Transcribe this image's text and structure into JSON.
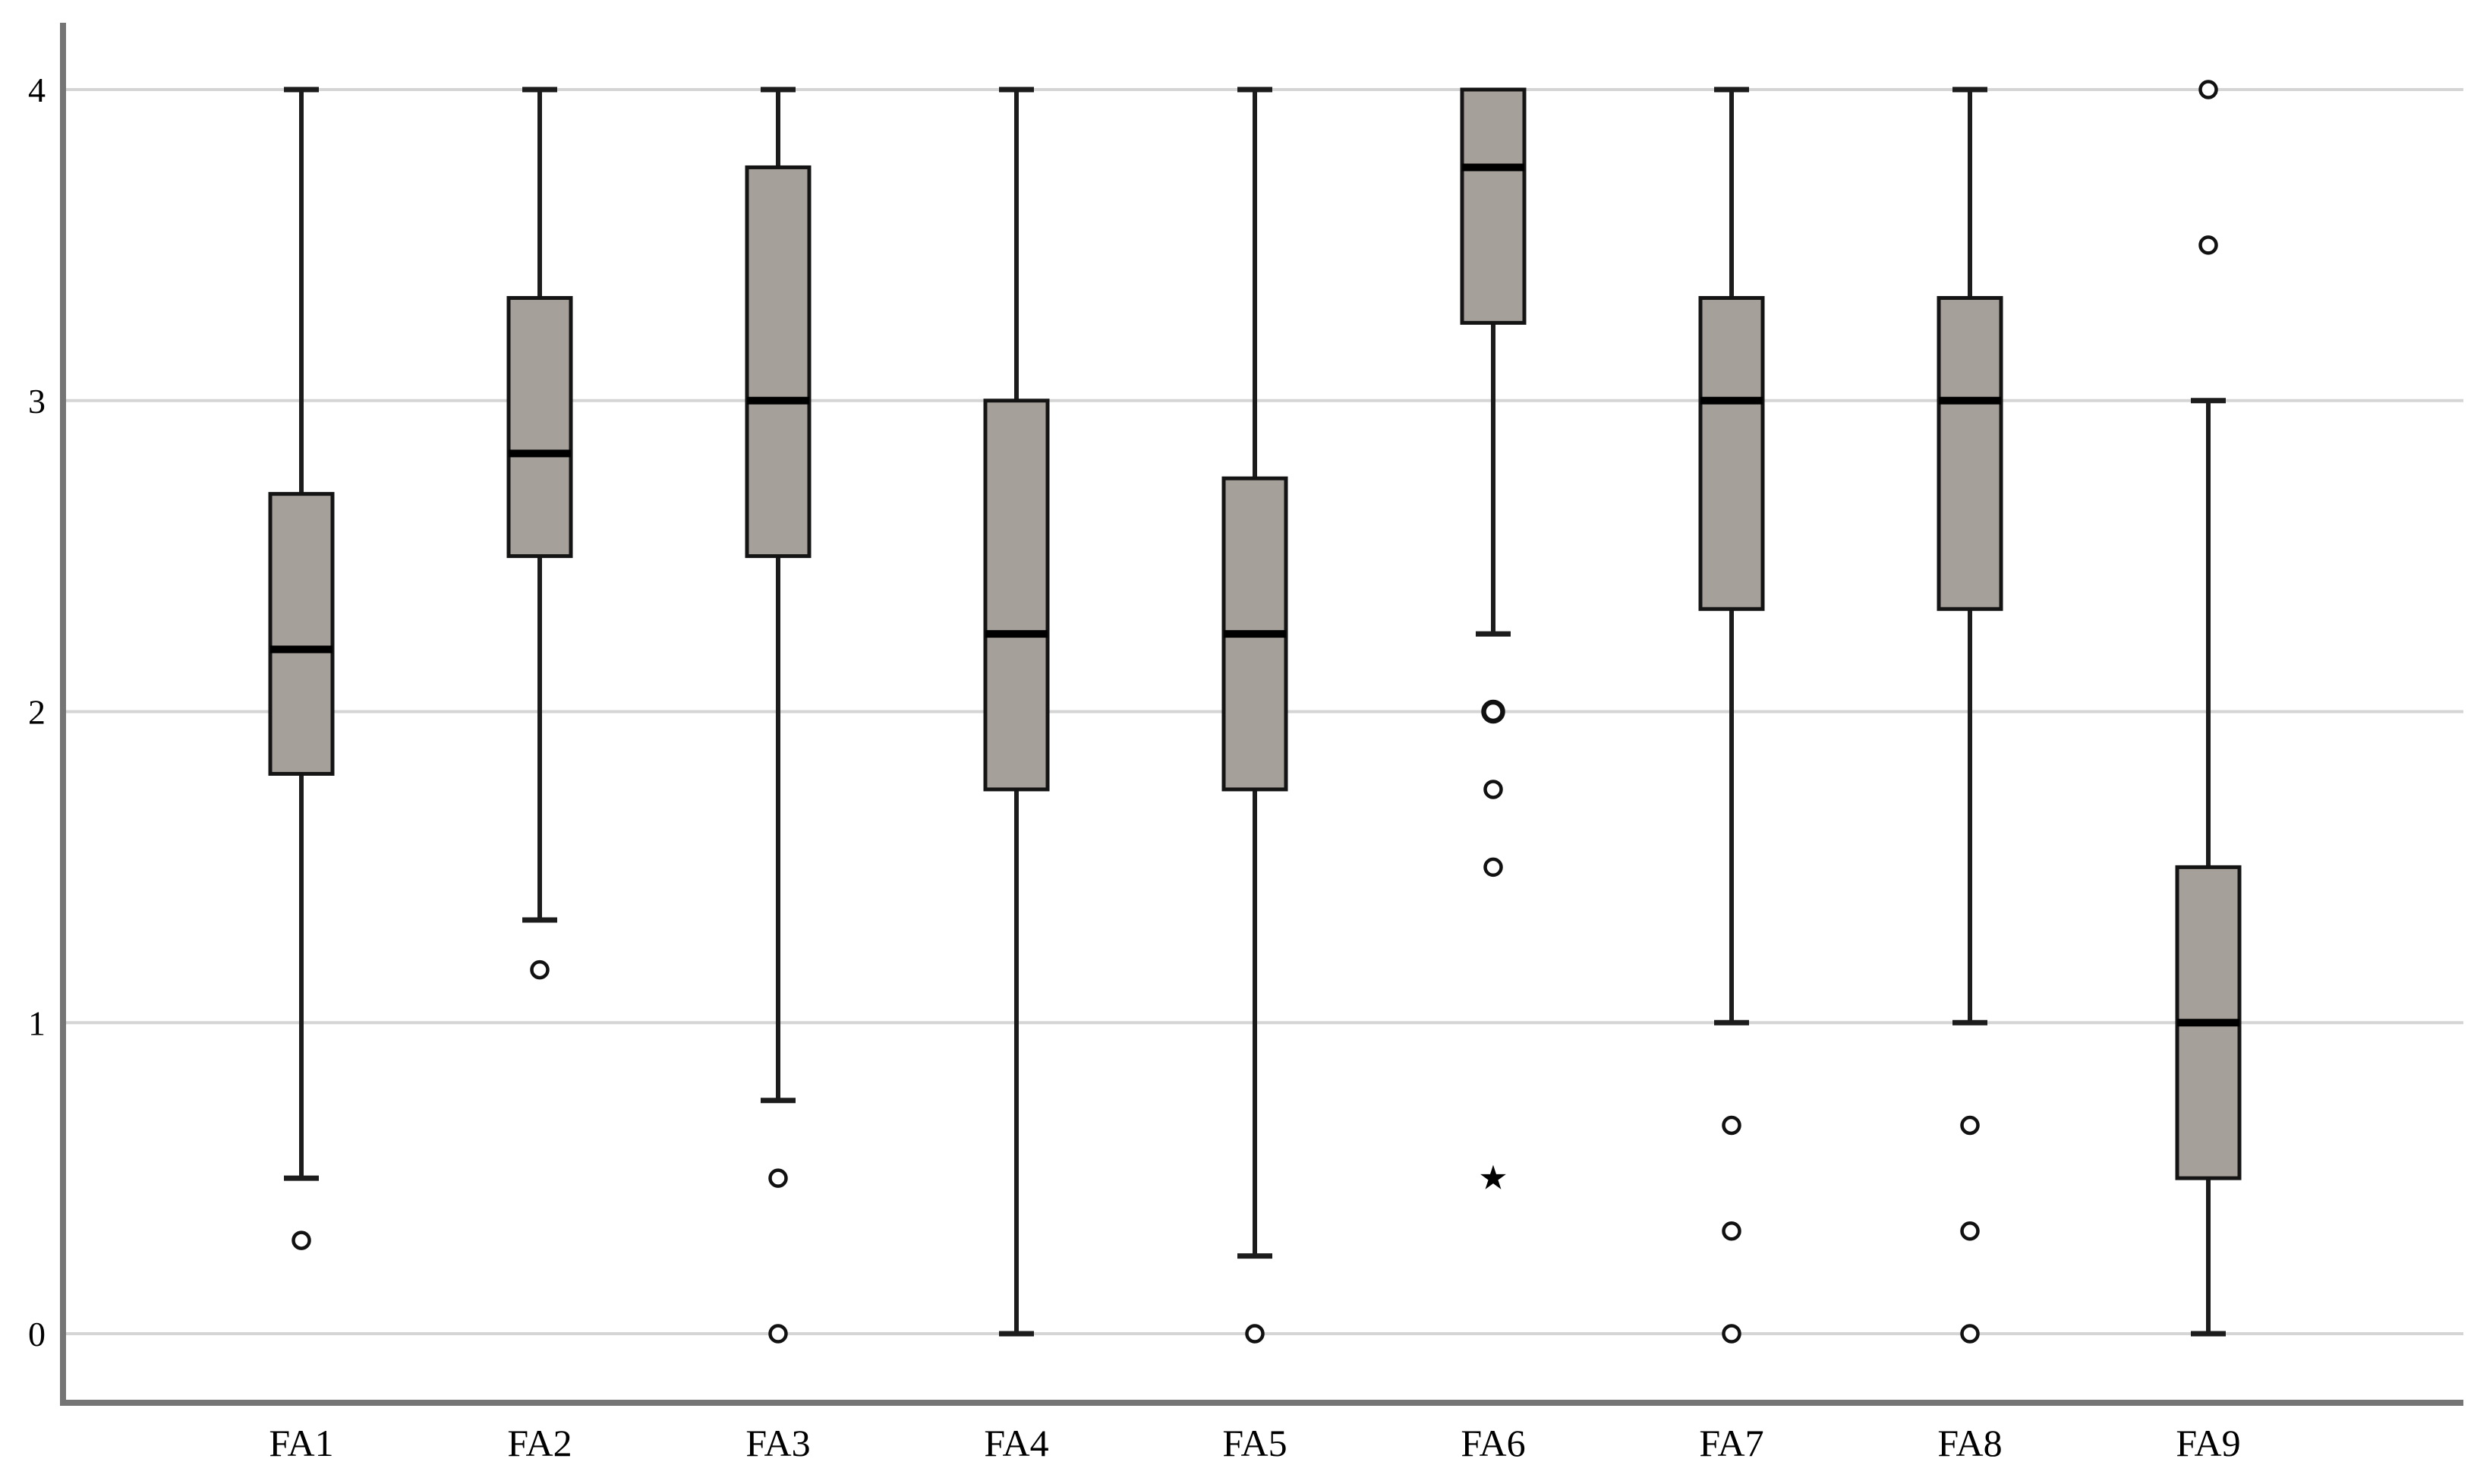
{
  "chart_data": {
    "type": "boxplot",
    "title": "",
    "xlabel": "",
    "ylabel": "",
    "categories": [
      "FA1",
      "FA2",
      "FA3",
      "FA4",
      "FA5",
      "FA6",
      "FA7",
      "FA8",
      "FA9"
    ],
    "y_axis": {
      "min": 0,
      "max": 4,
      "ticks": [
        0,
        1,
        2,
        3,
        4
      ]
    },
    "grid": true,
    "legend": "none",
    "series": [
      {
        "category": "FA1",
        "whisker_low": 0.5,
        "q1": 1.8,
        "median": 2.2,
        "q3": 2.7,
        "whisker_high": 4.0,
        "outliers": [
          {
            "value": 0.3,
            "symbol": "circle"
          }
        ]
      },
      {
        "category": "FA2",
        "whisker_low": 1.33,
        "q1": 2.5,
        "median": 2.83,
        "q3": 3.33,
        "whisker_high": 4.0,
        "outliers": [
          {
            "value": 1.17,
            "symbol": "circle"
          }
        ]
      },
      {
        "category": "FA3",
        "whisker_low": 0.75,
        "q1": 2.5,
        "median": 3.0,
        "q3": 3.75,
        "whisker_high": 4.0,
        "outliers": [
          {
            "value": 0.5,
            "symbol": "circle"
          },
          {
            "value": 0.0,
            "symbol": "circle"
          }
        ]
      },
      {
        "category": "FA4",
        "whisker_low": 0.0,
        "q1": 1.75,
        "median": 2.25,
        "q3": 3.0,
        "whisker_high": 4.0,
        "outliers": []
      },
      {
        "category": "FA5",
        "whisker_low": 0.25,
        "q1": 1.75,
        "median": 2.25,
        "q3": 2.75,
        "whisker_high": 4.0,
        "outliers": [
          {
            "value": 0.0,
            "symbol": "circle"
          }
        ]
      },
      {
        "category": "FA6",
        "whisker_low": 2.25,
        "q1": 3.25,
        "median": 3.75,
        "q3": 4.0,
        "whisker_high": 4.0,
        "outliers": [
          {
            "value": 2.0,
            "symbol": "circle",
            "bold": true
          },
          {
            "value": 1.75,
            "symbol": "circle"
          },
          {
            "value": 1.5,
            "symbol": "circle"
          },
          {
            "value": 0.5,
            "symbol": "star"
          }
        ]
      },
      {
        "category": "FA7",
        "whisker_low": 1.0,
        "q1": 2.33,
        "median": 3.0,
        "q3": 3.33,
        "whisker_high": 4.0,
        "outliers": [
          {
            "value": 0.67,
            "symbol": "circle"
          },
          {
            "value": 0.33,
            "symbol": "circle"
          },
          {
            "value": 0.0,
            "symbol": "circle"
          }
        ]
      },
      {
        "category": "FA8",
        "whisker_low": 1.0,
        "q1": 2.33,
        "median": 3.0,
        "q3": 3.33,
        "whisker_high": 4.0,
        "outliers": [
          {
            "value": 0.67,
            "symbol": "circle"
          },
          {
            "value": 0.33,
            "symbol": "circle"
          },
          {
            "value": 0.0,
            "symbol": "circle"
          }
        ]
      },
      {
        "category": "FA9",
        "whisker_low": 0.0,
        "q1": 0.5,
        "median": 1.0,
        "q3": 1.5,
        "whisker_high": 3.0,
        "outliers": [
          {
            "value": 3.5,
            "symbol": "circle"
          },
          {
            "value": 4.0,
            "symbol": "circle"
          }
        ]
      }
    ],
    "colors": {
      "background": "#ffffff",
      "box_fill": "#a6a09b",
      "box_border": "#141414",
      "median": "#000000",
      "whisker": "#1c1c1c",
      "gridline": "#d5d5d5",
      "axis": "#757575",
      "outlier": "#111111"
    }
  }
}
